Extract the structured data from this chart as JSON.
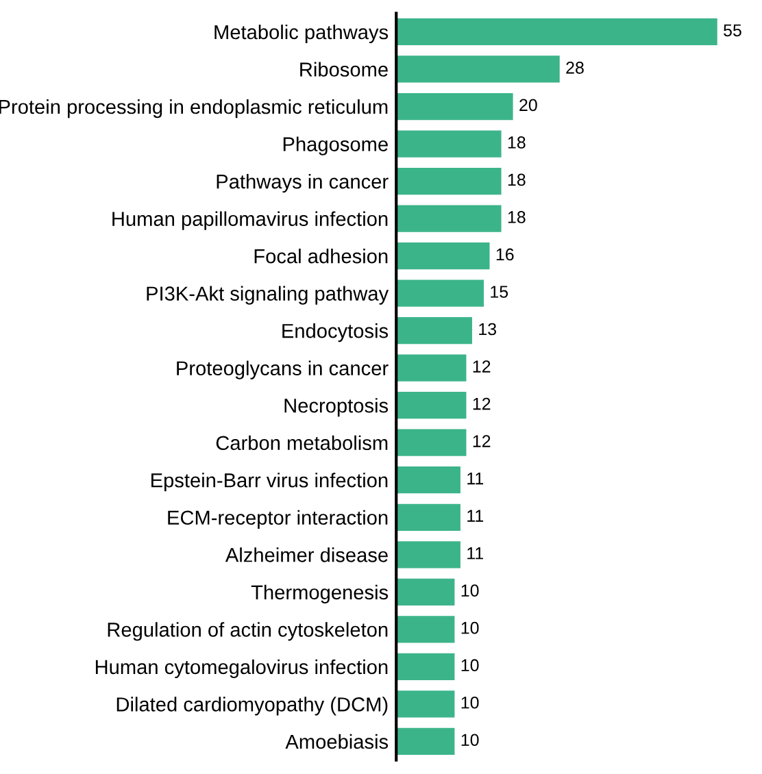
{
  "chart_data": {
    "type": "bar",
    "orientation": "horizontal",
    "data_labels": true,
    "grid": false,
    "legend": false,
    "tick_labels": "y",
    "categories": [
      "Metabolic pathways",
      "Ribosome",
      "Protein processing in endoplasmic reticulum",
      "Phagosome",
      "Pathways in cancer",
      "Human papillomavirus infection",
      "Focal adhesion",
      "PI3K-Akt signaling pathway",
      "Endocytosis",
      "Proteoglycans in cancer",
      "Necroptosis",
      "Carbon metabolism",
      "Epstein-Barr virus infection",
      "ECM-receptor interaction",
      "Alzheimer disease",
      "Thermogenesis",
      "Regulation of actin cytoskeleton",
      "Human cytomegalovirus infection",
      "Dilated cardiomyopathy (DCM)",
      "Amoebiasis"
    ],
    "values": [
      55,
      28,
      20,
      18,
      18,
      18,
      16,
      15,
      13,
      12,
      12,
      12,
      11,
      11,
      11,
      10,
      10,
      10,
      10,
      10
    ],
    "color": "#3cb48a"
  }
}
